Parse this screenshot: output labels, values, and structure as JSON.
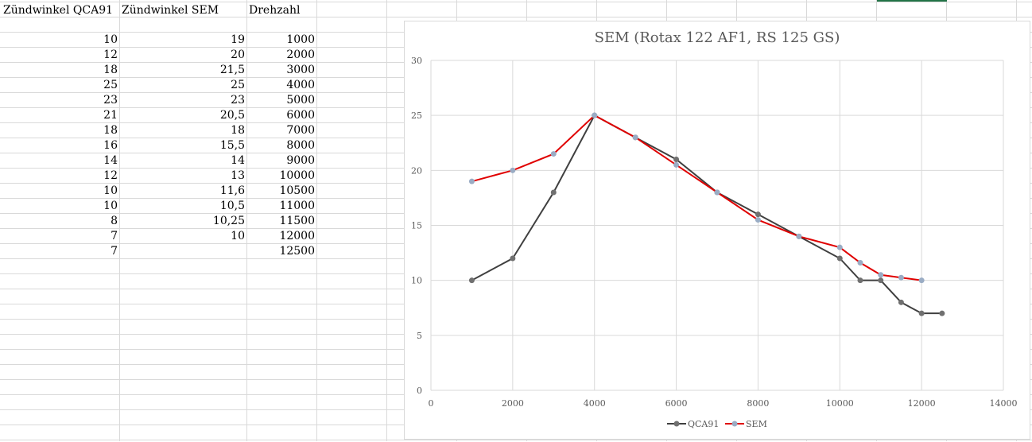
{
  "sheet": {
    "headers": [
      "Zündwinkel QCA91",
      "Zündwinkel SEM",
      "Drehzahl"
    ],
    "rows": [
      [
        "10",
        "19",
        "1000"
      ],
      [
        "12",
        "20",
        "2000"
      ],
      [
        "18",
        "21,5",
        "3000"
      ],
      [
        "25",
        "25",
        "4000"
      ],
      [
        "23",
        "23",
        "5000"
      ],
      [
        "21",
        "20,5",
        "6000"
      ],
      [
        "18",
        "18",
        "7000"
      ],
      [
        "16",
        "15,5",
        "8000"
      ],
      [
        "14",
        "14",
        "9000"
      ],
      [
        "12",
        "13",
        "10000"
      ],
      [
        "10",
        "11,6",
        "10500"
      ],
      [
        "10",
        "10,5",
        "11000"
      ],
      [
        "8",
        "10,25",
        "11500"
      ],
      [
        "7",
        "10",
        "12000"
      ],
      [
        "7",
        "",
        "12500"
      ]
    ]
  },
  "chart_data": {
    "type": "scatter",
    "title": "SEM (Rotax 122 AF1, RS 125 GS)",
    "xlim": [
      0,
      14000
    ],
    "ylim": [
      0,
      30
    ],
    "x_ticks": [
      0,
      2000,
      4000,
      6000,
      8000,
      10000,
      12000,
      14000
    ],
    "y_ticks": [
      0,
      5,
      10,
      15,
      20,
      25,
      30
    ],
    "grid": true,
    "legend": "bottom",
    "series": [
      {
        "name": "QCA91",
        "color": "#404040",
        "marker_color": "#707070",
        "x": [
          1000,
          2000,
          3000,
          4000,
          5000,
          6000,
          7000,
          8000,
          9000,
          10000,
          10500,
          11000,
          11500,
          12000,
          12500
        ],
        "y": [
          10,
          12,
          18,
          25,
          23,
          21,
          18,
          16,
          14,
          12,
          10,
          10,
          8,
          7,
          7
        ]
      },
      {
        "name": "SEM",
        "color": "#e00000",
        "marker_color": "#9aacc4",
        "x": [
          1000,
          2000,
          3000,
          4000,
          5000,
          6000,
          7000,
          8000,
          9000,
          10000,
          10500,
          11000,
          11500,
          12000
        ],
        "y": [
          19,
          20,
          21.5,
          25,
          23,
          20.5,
          18,
          15.5,
          14,
          13,
          11.6,
          10.5,
          10.25,
          10
        ]
      }
    ]
  }
}
